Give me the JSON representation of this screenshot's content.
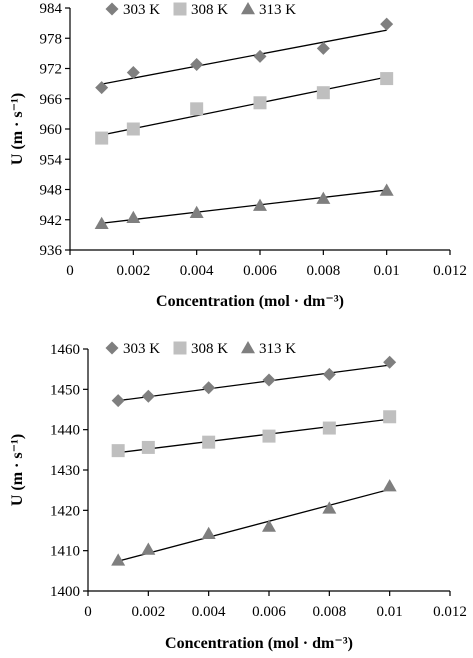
{
  "chart_data": [
    {
      "type": "scatter",
      "xlabel": "Concentration (mol · dm⁻³)",
      "ylabel": "U (m · s⁻¹)",
      "xlim": [
        0,
        0.012
      ],
      "ylim": [
        936,
        984
      ],
      "xticks": [
        "0",
        "0.002",
        "0.004",
        "0.006",
        "0.008",
        "0.01",
        "0.012"
      ],
      "yticks": [
        "936",
        "942",
        "948",
        "954",
        "960",
        "966",
        "972",
        "978",
        "984"
      ],
      "xtick_values": [
        0,
        0.002,
        0.004,
        0.006,
        0.008,
        0.01,
        0.012
      ],
      "ytick_values": [
        936,
        942,
        948,
        954,
        960,
        966,
        972,
        978,
        984
      ],
      "legend_position": "top",
      "series": [
        {
          "name": "303 K",
          "marker": "diamond",
          "color": "#7f7f7f",
          "x": [
            0.001,
            0.002,
            0.004,
            0.006,
            0.008,
            0.01
          ],
          "y": [
            968.2,
            971.2,
            972.8,
            974.4,
            976.0,
            980.8
          ],
          "trendline": [
            [
              0.001,
              968.9
            ],
            [
              0.01,
              979.6
            ]
          ]
        },
        {
          "name": "308 K",
          "marker": "square",
          "color": "#bfbfbf",
          "x": [
            0.001,
            0.002,
            0.004,
            0.006,
            0.008,
            0.01
          ],
          "y": [
            958.2,
            960.0,
            964.0,
            965.2,
            967.2,
            970.0
          ],
          "trendline": [
            [
              0.001,
              958.8
            ],
            [
              0.01,
              970.3
            ]
          ]
        },
        {
          "name": "313 K",
          "marker": "triangle",
          "color": "#7f7f7f",
          "x": [
            0.001,
            0.002,
            0.004,
            0.006,
            0.008,
            0.01
          ],
          "y": [
            941.2,
            942.4,
            943.4,
            944.8,
            946.2,
            947.8
          ],
          "trendline": [
            [
              0.001,
              941.3
            ],
            [
              0.01,
              947.9
            ]
          ]
        }
      ]
    },
    {
      "type": "scatter",
      "xlabel": "Concentration (mol · dm⁻³)",
      "ylabel": "U (m · s⁻¹)",
      "xlim": [
        0,
        0.012
      ],
      "ylim": [
        1400,
        1460
      ],
      "xticks": [
        "0",
        "0.002",
        "0.004",
        "0.006",
        "0.008",
        "0.01",
        "0.012"
      ],
      "yticks": [
        "1400",
        "1410",
        "1420",
        "1430",
        "1440",
        "1450",
        "1460"
      ],
      "xtick_values": [
        0,
        0.002,
        0.004,
        0.006,
        0.008,
        0.01,
        0.012
      ],
      "ytick_values": [
        1400,
        1410,
        1420,
        1430,
        1440,
        1450,
        1460
      ],
      "legend_position": "top",
      "series": [
        {
          "name": "303 K",
          "marker": "diamond",
          "color": "#7f7f7f",
          "x": [
            0.001,
            0.002,
            0.004,
            0.006,
            0.008,
            0.01
          ],
          "y": [
            1447.2,
            1448.3,
            1450.4,
            1452.3,
            1453.7,
            1456.7
          ],
          "trendline": [
            [
              0.001,
              1447.2
            ],
            [
              0.01,
              1456.0
            ]
          ]
        },
        {
          "name": "308 K",
          "marker": "square",
          "color": "#bfbfbf",
          "x": [
            0.001,
            0.002,
            0.004,
            0.006,
            0.008,
            0.01
          ],
          "y": [
            1434.8,
            1435.6,
            1436.9,
            1438.4,
            1440.4,
            1443.2
          ],
          "trendline": [
            [
              0.001,
              1434.3
            ],
            [
              0.01,
              1442.6
            ]
          ]
        },
        {
          "name": "313 K",
          "marker": "triangle",
          "color": "#7f7f7f",
          "x": [
            0.001,
            0.002,
            0.004,
            0.006,
            0.008,
            0.01
          ],
          "y": [
            1407.6,
            1410.3,
            1414.2,
            1416.0,
            1420.5,
            1426.0
          ],
          "trendline": [
            [
              0.001,
              1407.4
            ],
            [
              0.01,
              1425.2
            ]
          ]
        }
      ]
    }
  ]
}
